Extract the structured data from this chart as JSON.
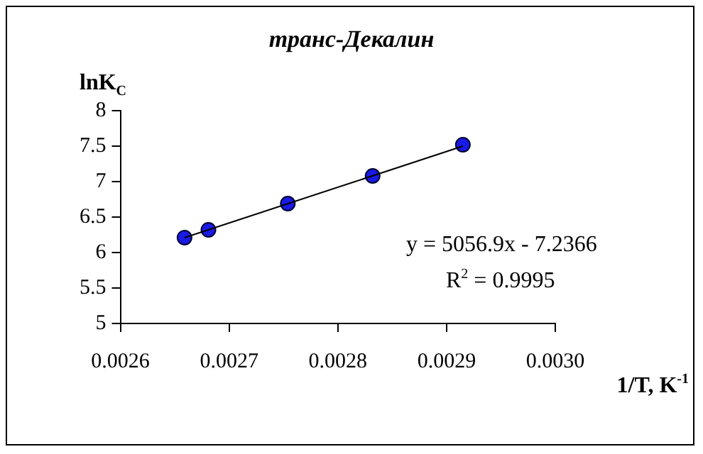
{
  "chart_data": {
    "type": "scatter",
    "title": "транс-Декалин",
    "xlabel": "1/T, K$^{-1}$",
    "ylabel": "lnK$_{C}$",
    "xlim": [
      0.0026,
      0.003
    ],
    "xticks": [
      {
        "value": 0.0026,
        "label": "0.0026"
      },
      {
        "value": 0.0027,
        "label": "0.0027"
      },
      {
        "value": 0.0028,
        "label": "0.0028"
      },
      {
        "value": 0.0029,
        "label": "0.0029"
      },
      {
        "value": 0.003,
        "label": "0.0030"
      }
    ],
    "ylim": [
      5,
      8
    ],
    "yticks": [
      5,
      5.5,
      6,
      6.5,
      7,
      7.5,
      8
    ],
    "series": [
      {
        "marker": "circle",
        "color": "#1a1ae6",
        "x": [
          0.002659,
          0.002681,
          0.002754,
          0.002832,
          0.002915
        ],
        "values": [
          6.21,
          6.32,
          6.69,
          7.08,
          7.52
        ]
      },
      {
        "type": "line",
        "marker": "none",
        "color": "#000000",
        "line_style": "solid",
        "x": [
          0.002659,
          0.002915
        ],
        "values": [
          6.21,
          7.5
        ]
      }
    ],
    "annotations": [
      "y = 5056.9x - 7.2366",
      "R$^{2}$ = 0.9995"
    ]
  }
}
